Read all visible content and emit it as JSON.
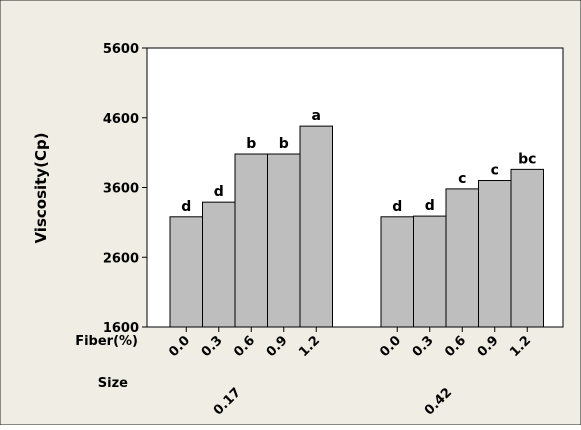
{
  "colors": {
    "figure_background": "#f0ede4",
    "plot_background": "#ffffff",
    "bar_fill": "#bebebe",
    "bar_stroke": "#000000",
    "axis": "#000000"
  },
  "chart_data": {
    "type": "bar",
    "title": "",
    "ylabel": "Viscosity(Cp)",
    "ylim": [
      1600,
      5600
    ],
    "yticks": [
      1600,
      2600,
      3600,
      4600,
      5600
    ],
    "grid": false,
    "legend": "none",
    "row_labels": {
      "fiber": "Fiber(%)",
      "size": "Size"
    },
    "groups": [
      {
        "size": "0.17",
        "bars": [
          {
            "fiber": "0.0",
            "value": 3180,
            "letter": "d"
          },
          {
            "fiber": "0.3",
            "value": 3390,
            "letter": "d"
          },
          {
            "fiber": "0.6",
            "value": 4080,
            "letter": "b"
          },
          {
            "fiber": "0.9",
            "value": 4080,
            "letter": "b"
          },
          {
            "fiber": "1.2",
            "value": 4480,
            "letter": "a"
          }
        ]
      },
      {
        "size": "0.42",
        "bars": [
          {
            "fiber": "0.0",
            "value": 3180,
            "letter": "d"
          },
          {
            "fiber": "0.3",
            "value": 3190,
            "letter": "d"
          },
          {
            "fiber": "0.6",
            "value": 3580,
            "letter": "c"
          },
          {
            "fiber": "0.9",
            "value": 3700,
            "letter": "c"
          },
          {
            "fiber": "1.2",
            "value": 3860,
            "letter": "bc"
          }
        ]
      }
    ]
  }
}
